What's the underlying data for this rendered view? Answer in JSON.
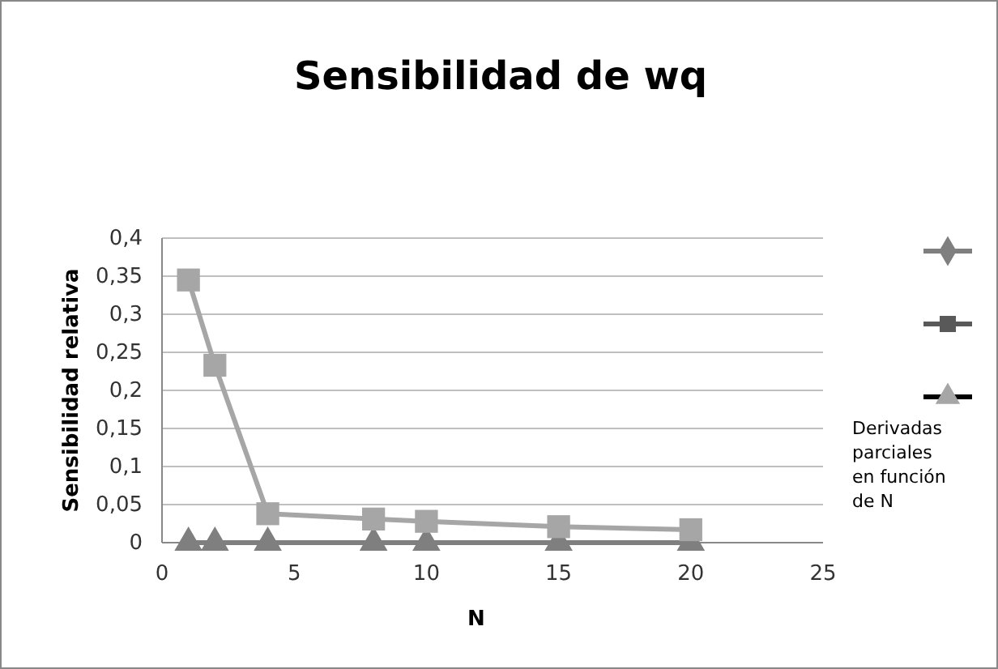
{
  "chart_data": {
    "type": "line",
    "title": "Sensibilidad de wq",
    "xlabel": "N",
    "ylabel": "Sensibilidad relativa",
    "x": [
      1,
      2,
      4,
      8,
      10,
      15,
      20
    ],
    "series": [
      {
        "color": "#7f7f7f",
        "marker": "triangle",
        "values": [
          0,
          0,
          0,
          0,
          0,
          0,
          0
        ]
      },
      {
        "color": "#a6a6a6",
        "marker": "square",
        "values": [
          0.345,
          0.233,
          0.038,
          0.031,
          0.028,
          0.021,
          0.017
        ]
      }
    ],
    "xlim": [
      0,
      25
    ],
    "xticks": [
      0,
      5,
      10,
      15,
      20,
      25
    ],
    "ylim": [
      0,
      0.4
    ],
    "yticks": [
      {
        "value": 0,
        "label": "0"
      },
      {
        "value": 0.05,
        "label": "0,05"
      },
      {
        "value": 0.1,
        "label": "0,1"
      },
      {
        "value": 0.15,
        "label": "0,15"
      },
      {
        "value": 0.2,
        "label": "0,2"
      },
      {
        "value": 0.25,
        "label": "0,25"
      },
      {
        "value": 0.3,
        "label": "0,3"
      },
      {
        "value": 0.35,
        "label": "0,35"
      },
      {
        "value": 0.4,
        "label": "0,4"
      }
    ],
    "grid": "y",
    "annotations": [
      "Derivadas parciales en función de N"
    ]
  }
}
